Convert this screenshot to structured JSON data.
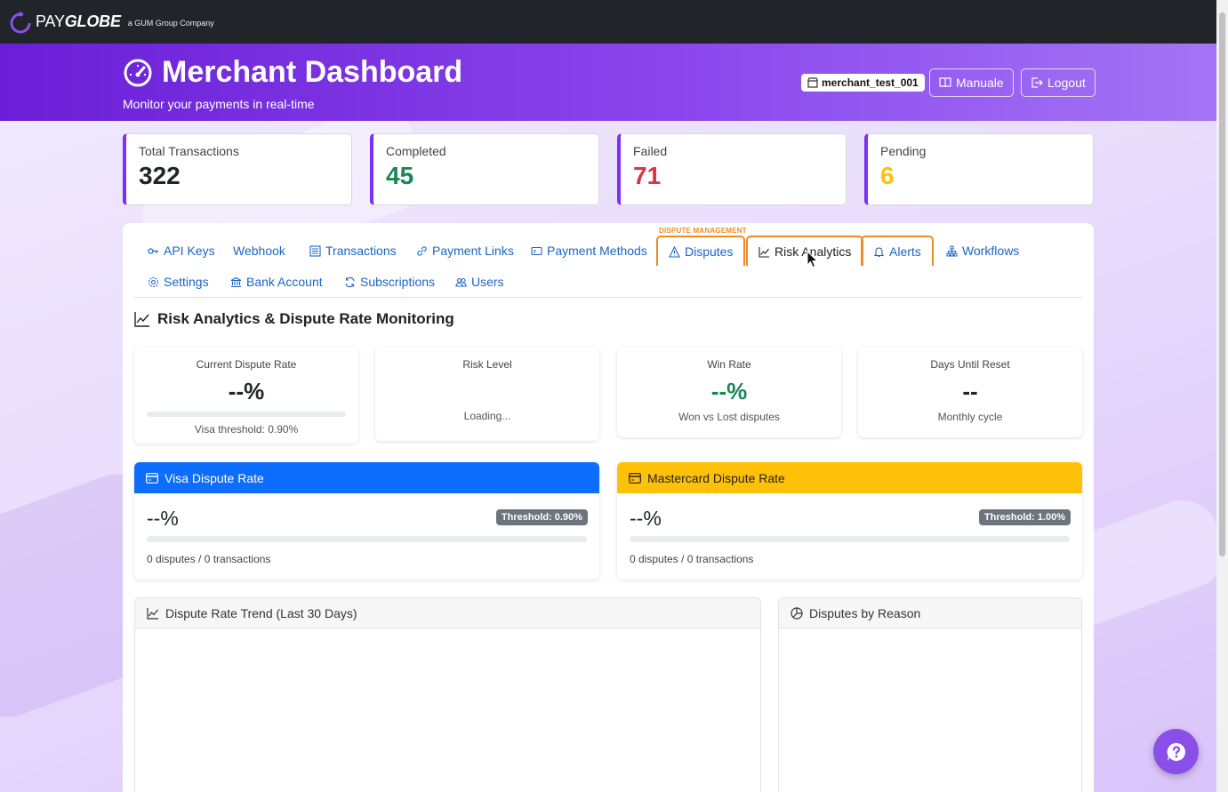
{
  "brand": {
    "name_prefix": "PAY",
    "name_suffix": "GLOBE",
    "tagline": "a GUM Group Company"
  },
  "header": {
    "title": "Merchant Dashboard",
    "subtitle": "Monitor your payments in real-time",
    "merchant_id": "merchant_test_001",
    "manual_label": "Manuale",
    "logout_label": "Logout"
  },
  "stats": [
    {
      "label": "Total Transactions",
      "value": "322",
      "color": "#212529"
    },
    {
      "label": "Completed",
      "value": "45",
      "color": "#198754"
    },
    {
      "label": "Failed",
      "value": "71",
      "color": "#dc3545"
    },
    {
      "label": "Pending",
      "value": "6",
      "color": "#ffc107"
    }
  ],
  "tabs": {
    "group_label": "DISPUTE MANAGEMENT",
    "items": [
      {
        "label": "API Keys",
        "icon": "key-icon"
      },
      {
        "label": "Webhook",
        "icon": ""
      },
      {
        "label": "Transactions",
        "icon": "list-icon"
      },
      {
        "label": "Payment Links",
        "icon": "link-icon"
      },
      {
        "label": "Payment Methods",
        "icon": "card-icon"
      },
      {
        "label": "Disputes",
        "icon": "warning-icon"
      },
      {
        "label": "Risk Analytics",
        "icon": "graph-icon",
        "active": true
      },
      {
        "label": "Alerts",
        "icon": "bell-icon"
      },
      {
        "label": "Workflows",
        "icon": "diagram-icon"
      },
      {
        "label": "Settings",
        "icon": "gear-icon"
      },
      {
        "label": "Bank Account",
        "icon": "bank-icon"
      },
      {
        "label": "Subscriptions",
        "icon": "refresh-icon"
      },
      {
        "label": "Users",
        "icon": "people-icon"
      }
    ]
  },
  "risk": {
    "title": "Risk Analytics & Dispute Rate Monitoring",
    "metrics": {
      "dispute_rate": {
        "title": "Current Dispute Rate",
        "value": "--%",
        "sub": "Visa threshold: 0.90%"
      },
      "risk_level": {
        "title": "Risk Level",
        "sub": "Loading..."
      },
      "win_rate": {
        "title": "Win Rate",
        "value": "--%",
        "sub": "Won vs Lost disputes"
      },
      "days_reset": {
        "title": "Days Until Reset",
        "value": "--",
        "sub": "Monthly cycle"
      }
    },
    "visa": {
      "title": "Visa Dispute Rate",
      "value": "--%",
      "threshold": "Threshold: 0.90%",
      "footer": "0 disputes / 0 transactions",
      "color": "#0d6efd"
    },
    "mastercard": {
      "title": "Mastercard Dispute Rate",
      "value": "--%",
      "threshold": "Threshold: 1.00%",
      "footer": "0 disputes / 0 transactions",
      "color": "#ffc107"
    },
    "trend_title": "Dispute Rate Trend (Last 30 Days)",
    "reason_title": "Disputes by Reason"
  }
}
